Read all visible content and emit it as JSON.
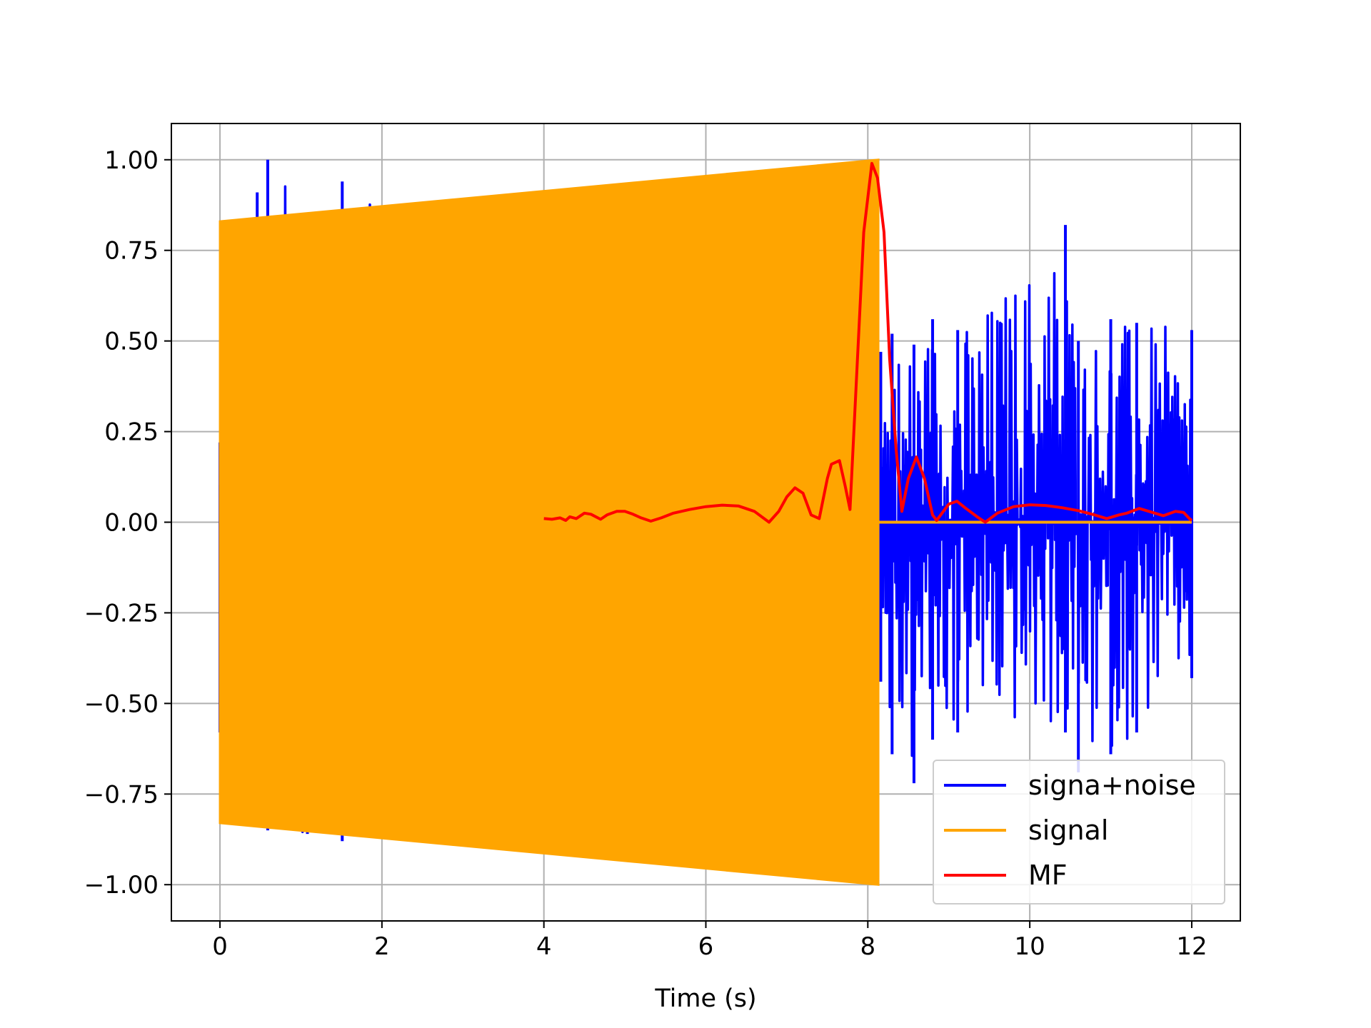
{
  "chart_data": {
    "type": "line",
    "title": "",
    "xlabel": "Time (s)",
    "ylabel": "",
    "xlim": [
      -0.6,
      12.6
    ],
    "ylim": [
      -1.1,
      1.1
    ],
    "x_ticks": [
      0,
      2,
      4,
      6,
      8,
      10,
      12
    ],
    "x_tick_labels": [
      "0",
      "2",
      "4",
      "6",
      "8",
      "10",
      "12"
    ],
    "y_ticks": [
      1.0,
      0.75,
      0.5,
      0.25,
      0.0,
      -0.25,
      -0.5,
      -0.75,
      -1.0
    ],
    "y_tick_labels": [
      "1.00",
      "0.75",
      "0.50",
      "0.25",
      "0.00",
      "−0.25",
      "−0.50",
      "−0.75",
      "−1.00"
    ],
    "grid": true,
    "legend_position": "lower right",
    "series": [
      {
        "name": "signa+noise",
        "color": "#0000ff",
        "style": "noisy oscillation",
        "x_range": [
          0,
          12
        ],
        "x": [
          0,
          0.46,
          0.59,
          1.08,
          1.51,
          8.16,
          8.3,
          8.57,
          8.8,
          9.11,
          10.44,
          10.6,
          11.0,
          11.32,
          12.0
        ],
        "upper": [
          0.22,
          0.91,
          1.0,
          0.85,
          0.94,
          0.47,
          0.52,
          0.49,
          0.56,
          0.53,
          0.82,
          0.5,
          0.56,
          0.55,
          0.53
        ],
        "lower": [
          -0.58,
          -0.84,
          -0.85,
          -0.86,
          -0.88,
          -0.44,
          -0.64,
          -0.72,
          -0.6,
          -0.58,
          -0.58,
          -0.69,
          -0.64,
          -0.58,
          -0.43
        ]
      },
      {
        "name": "signal",
        "color": "#ffa500",
        "style": "chirp envelope",
        "x_range": [
          0,
          8.13
        ],
        "x": [
          0,
          8.13
        ],
        "upper": [
          0.83,
          1.0
        ],
        "lower": [
          -0.83,
          -1.0
        ],
        "after_end_value": 0.0
      },
      {
        "name": "MF",
        "color": "#ff0000",
        "style": "line",
        "x": [
          4.0,
          4.1,
          4.2,
          4.27,
          4.32,
          4.4,
          4.5,
          4.58,
          4.7,
          4.78,
          4.9,
          5.0,
          5.1,
          5.2,
          5.32,
          5.45,
          5.6,
          5.8,
          6.0,
          6.2,
          6.4,
          6.6,
          6.78,
          6.9,
          7.0,
          7.1,
          7.2,
          7.3,
          7.4,
          7.5,
          7.55,
          7.65,
          7.72,
          7.78,
          7.85,
          7.95,
          8.05,
          8.12,
          8.2,
          8.27,
          8.35,
          8.42,
          8.5,
          8.6,
          8.7,
          8.8,
          8.85,
          9.0,
          9.1,
          9.2,
          9.35,
          9.45,
          9.6,
          9.8,
          10.0,
          10.2,
          10.4,
          10.6,
          10.8,
          10.95,
          11.1,
          11.2,
          11.35,
          11.5,
          11.65,
          11.8,
          11.9,
          11.97,
          12.0
        ],
        "y": [
          0.01,
          0.008,
          0.012,
          0.005,
          0.015,
          0.01,
          0.025,
          0.022,
          0.008,
          0.02,
          0.03,
          0.03,
          0.022,
          0.012,
          0.003,
          0.012,
          0.025,
          0.035,
          0.043,
          0.047,
          0.045,
          0.03,
          0.0,
          0.03,
          0.07,
          0.095,
          0.08,
          0.02,
          0.01,
          0.12,
          0.16,
          0.17,
          0.1,
          0.035,
          0.35,
          0.8,
          0.99,
          0.95,
          0.8,
          0.45,
          0.2,
          0.03,
          0.12,
          0.18,
          0.12,
          0.02,
          0.005,
          0.05,
          0.058,
          0.04,
          0.015,
          0.0,
          0.025,
          0.043,
          0.048,
          0.046,
          0.04,
          0.032,
          0.02,
          0.01,
          0.02,
          0.025,
          0.038,
          0.028,
          0.018,
          0.03,
          0.027,
          0.01,
          0.005
        ]
      }
    ]
  }
}
